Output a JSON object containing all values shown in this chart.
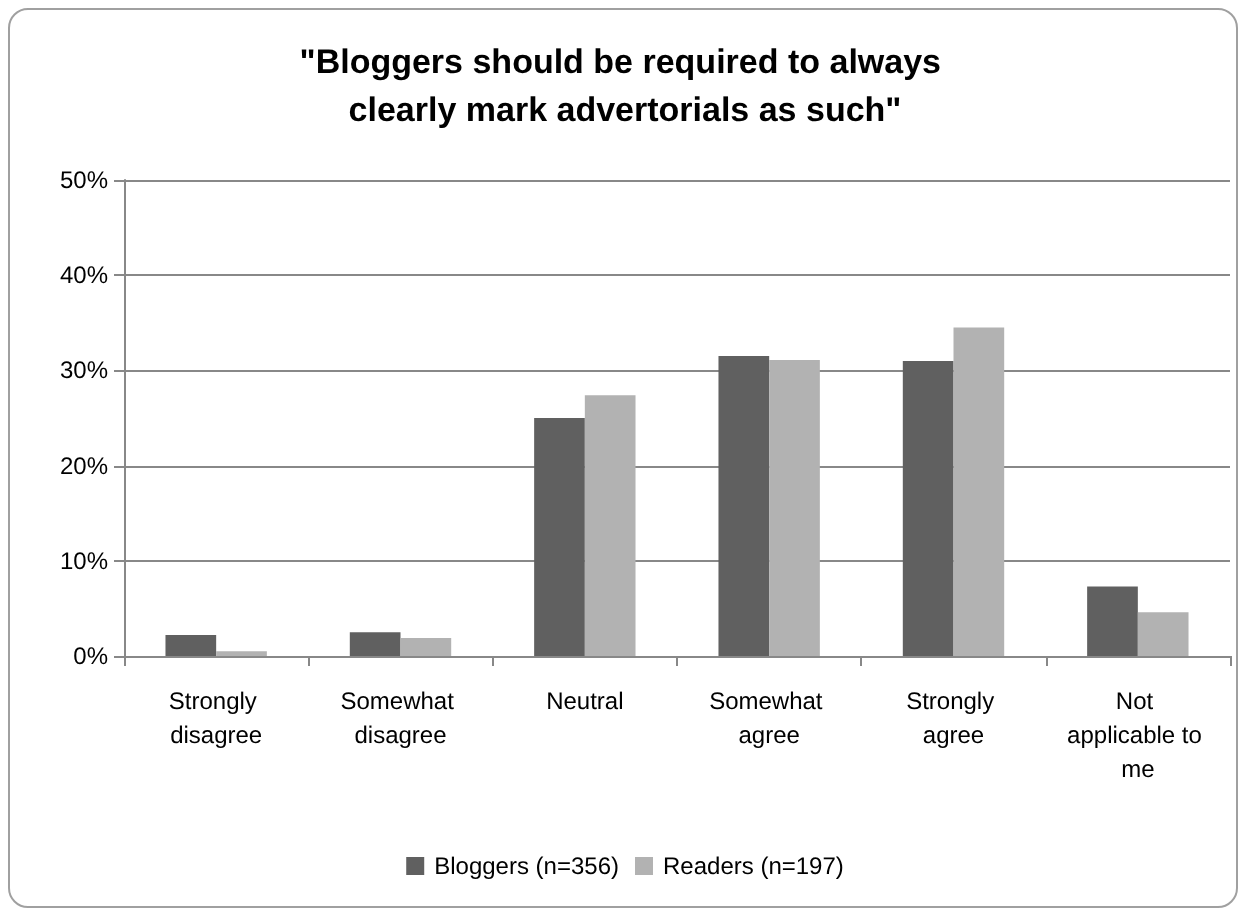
{
  "chart_data": {
    "type": "bar",
    "title": "\"Bloggers should be required to always clearly mark advertorials as such\"",
    "categories": [
      "Strongly disagree",
      "Somewhat disagree",
      "Neutral",
      "Somewhat agree",
      "Strongly agree",
      "Not applicable to me"
    ],
    "series": [
      {
        "name": "Bloggers (n=356)",
        "color": "#606060",
        "values": [
          2.2,
          2.5,
          25.0,
          31.5,
          31.0,
          7.3
        ]
      },
      {
        "name": "Readers (n=197)",
        "color": "#b2b2b2",
        "values": [
          0.5,
          1.9,
          27.4,
          31.1,
          34.5,
          4.6
        ]
      }
    ],
    "ylim": [
      0,
      50
    ],
    "yticks": [
      {
        "value": 0,
        "label": "0%"
      },
      {
        "value": 10,
        "label": "10%"
      },
      {
        "value": 20,
        "label": "20%"
      },
      {
        "value": 30,
        "label": "30%"
      },
      {
        "value": 40,
        "label": "40%"
      },
      {
        "value": 50,
        "label": "50%"
      }
    ],
    "grid": "y",
    "legend": "bottom"
  }
}
